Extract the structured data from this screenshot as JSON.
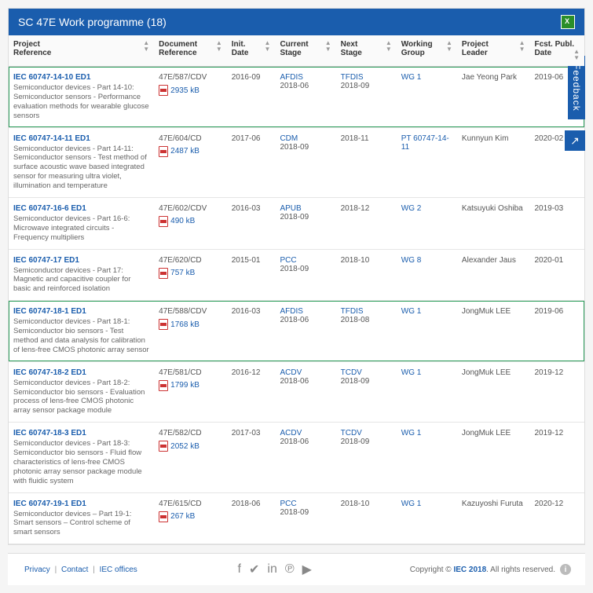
{
  "header": {
    "title": "SC 47E Work programme (18)"
  },
  "feedback": {
    "label": "Feedback",
    "share_glyph": "↗"
  },
  "columns": [
    {
      "line1": "Project",
      "line2": "Reference"
    },
    {
      "line1": "Document",
      "line2": "Reference"
    },
    {
      "line1": "Init.",
      "line2": "Date"
    },
    {
      "line1": "Current",
      "line2": "Stage"
    },
    {
      "line1": "Next",
      "line2": "Stage"
    },
    {
      "line1": "Working",
      "line2": "Group"
    },
    {
      "line1": "Project",
      "line2": "Leader"
    },
    {
      "line1": "Fcst. Publ.",
      "line2": "Date"
    }
  ],
  "rows": [
    {
      "highlight": true,
      "proj_id": "IEC 60747-14-10 ED1",
      "proj_desc": "Semiconductor devices - Part 14-10: Semiconductor sensors - Performance evaluation methods for wearable glucose sensors",
      "doc_ref": "47E/587/CDV",
      "doc_size": "2935 kB",
      "init_date": "2016-09",
      "cur_stage": "AFDIS",
      "cur_date": "2018-06",
      "next_stage": "TFDIS",
      "next_date": "2018-09",
      "wg": "WG 1",
      "leader": "Jae Yeong Park",
      "fcst": "2019-06"
    },
    {
      "highlight": false,
      "proj_id": "IEC 60747-14-11 ED1",
      "proj_desc": "Semiconductor devices - Part 14-11: Semiconductor sensors - Test method of surface acoustic wave based integrated sensor for measuring ultra violet, illumination and temperature",
      "doc_ref": "47E/604/CD",
      "doc_size": "2487 kB",
      "init_date": "2017-06",
      "cur_stage": "CDM",
      "cur_date": "2018-09",
      "next_stage": "",
      "next_date": "2018-11",
      "wg": "PT 60747-14-11",
      "leader": "Kunnyun Kim",
      "fcst": "2020-02"
    },
    {
      "highlight": false,
      "proj_id": "IEC 60747-16-6 ED1",
      "proj_desc": "Semiconductor devices - Part 16-6: Microwave integrated circuits - Frequency multipliers",
      "doc_ref": "47E/602/CDV",
      "doc_size": "490 kB",
      "init_date": "2016-03",
      "cur_stage": "APUB",
      "cur_date": "2018-09",
      "next_stage": "",
      "next_date": "2018-12",
      "wg": "WG 2",
      "leader": "Katsuyuki Oshiba",
      "fcst": "2019-03"
    },
    {
      "highlight": false,
      "proj_id": "IEC 60747-17 ED1",
      "proj_desc": "Semiconductor devices - Part 17: Magnetic and capacitive coupler for basic and reinforced isolation",
      "doc_ref": "47E/620/CD",
      "doc_size": "757 kB",
      "init_date": "2015-01",
      "cur_stage": "PCC",
      "cur_date": "2018-09",
      "next_stage": "",
      "next_date": "2018-10",
      "wg": "WG 8",
      "leader": "Alexander Jaus",
      "fcst": "2020-01"
    },
    {
      "highlight": true,
      "proj_id": "IEC 60747-18-1 ED1",
      "proj_desc": "Semiconductor devices - Part 18-1: Semiconductor bio sensors - Test method and data analysis for calibration of lens-free CMOS photonic array sensor",
      "doc_ref": "47E/588/CDV",
      "doc_size": "1768 kB",
      "init_date": "2016-03",
      "cur_stage": "AFDIS",
      "cur_date": "2018-06",
      "next_stage": "TFDIS",
      "next_date": "2018-08",
      "wg": "WG 1",
      "leader": "JongMuk LEE",
      "fcst": "2019-06"
    },
    {
      "highlight": false,
      "proj_id": "IEC 60747-18-2 ED1",
      "proj_desc": "Semiconductor devices - Part 18-2: Semiconductor bio sensors - Evaluation process of lens-free CMOS photonic array sensor package module",
      "doc_ref": "47E/581/CD",
      "doc_size": "1799 kB",
      "init_date": "2016-12",
      "cur_stage": "ACDV",
      "cur_date": "2018-06",
      "next_stage": "TCDV",
      "next_date": "2018-09",
      "wg": "WG 1",
      "leader": "JongMuk LEE",
      "fcst": "2019-12"
    },
    {
      "highlight": false,
      "proj_id": "IEC 60747-18-3 ED1",
      "proj_desc": "Semiconductor devices - Part 18-3: Semiconductor bio sensors - Fluid flow characteristics of lens-free CMOS photonic array sensor package module with fluidic system",
      "doc_ref": "47E/582/CD",
      "doc_size": "2052 kB",
      "init_date": "2017-03",
      "cur_stage": "ACDV",
      "cur_date": "2018-06",
      "next_stage": "TCDV",
      "next_date": "2018-09",
      "wg": "WG 1",
      "leader": "JongMuk LEE",
      "fcst": "2019-12"
    },
    {
      "highlight": false,
      "proj_id": "IEC 60747-19-1 ED1",
      "proj_desc": "Semiconductor devices – Part 19-1: Smart sensors – Control scheme of smart sensors",
      "doc_ref": "47E/615/CD",
      "doc_size": "267 kB",
      "init_date": "2018-06",
      "cur_stage": "PCC",
      "cur_date": "2018-09",
      "next_stage": "",
      "next_date": "2018-10",
      "wg": "WG 1",
      "leader": "Kazuyoshi Furuta",
      "fcst": "2020-12"
    }
  ],
  "footer": {
    "privacy": "Privacy",
    "contact": "Contact",
    "offices": "IEC offices",
    "copyright_prefix": "Copyright © ",
    "copyright_brand": "IEC 2018",
    "copyright_suffix": ". All rights reserved.",
    "social": {
      "f": "f",
      "t": "✔",
      "in": "in",
      "p": "℗",
      "yt": "▶"
    }
  }
}
